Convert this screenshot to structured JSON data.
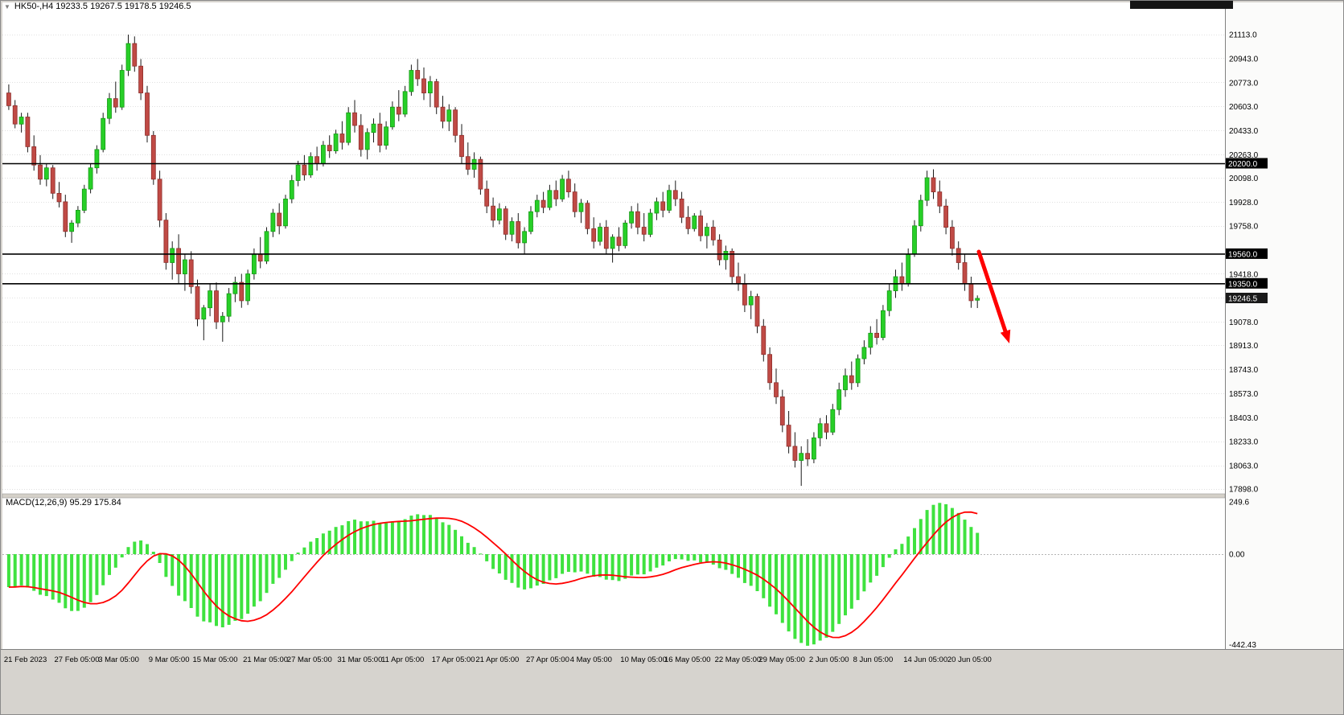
{
  "header": {
    "title": "HK50-,H4  19233.5 19267.5 19178.5 19246.5"
  },
  "colors": {
    "bull": "#27cf27",
    "bull_border": "#159915",
    "bear": "#c04a45",
    "bear_border": "#8e2f2c",
    "wick": "#1a1a1a",
    "level": "#000000",
    "grid": "#e0e0e0",
    "histogram": "#3fe23f",
    "signal": "#ff0000",
    "arrow": "#ff0000"
  },
  "price_axis": {
    "ticks": [
      21113.0,
      20943.0,
      20773.0,
      20603.0,
      20433.0,
      20263.0,
      20098.0,
      19928.0,
      19758.0,
      19418.0,
      19078.0,
      18913.0,
      18743.0,
      18573.0,
      18403.0,
      18233.0,
      18063.0,
      17898.0
    ],
    "unlabeled_gridlines": [
      19248
    ],
    "levels": [
      {
        "value": 20200,
        "label": "20200.0"
      },
      {
        "value": 19560,
        "label": "19560.0"
      },
      {
        "value": 19350,
        "label": "19350.0"
      }
    ],
    "current": {
      "value": 19246.5,
      "label": "19246.5"
    }
  },
  "time_axis": {
    "labels": [
      {
        "index": 0,
        "text": "21 Feb 2023"
      },
      {
        "index": 8,
        "text": "27 Feb 05:00"
      },
      {
        "index": 15,
        "text": "3 Mar 05:00"
      },
      {
        "index": 23,
        "text": "9 Mar 05:00"
      },
      {
        "index": 30,
        "text": "15 Mar 05:00"
      },
      {
        "index": 38,
        "text": "21 Mar 05:00"
      },
      {
        "index": 45,
        "text": "27 Mar 05:00"
      },
      {
        "index": 53,
        "text": "31 Mar 05:00"
      },
      {
        "index": 60,
        "text": "11 Apr 05:00"
      },
      {
        "index": 68,
        "text": "17 Apr 05:00"
      },
      {
        "index": 75,
        "text": "21 Apr 05:00"
      },
      {
        "index": 83,
        "text": "27 Apr 05:00"
      },
      {
        "index": 90,
        "text": "4 May 05:00"
      },
      {
        "index": 98,
        "text": "10 May 05:00"
      },
      {
        "index": 105,
        "text": "16 May 05:00"
      },
      {
        "index": 113,
        "text": "22 May 05:00"
      },
      {
        "index": 120,
        "text": "29 May 05:00"
      },
      {
        "index": 128,
        "text": "2 Jun 05:00"
      },
      {
        "index": 135,
        "text": "8 Jun 05:00"
      },
      {
        "index": 143,
        "text": "14 Jun 05:00"
      },
      {
        "index": 150,
        "text": "20 Jun 05:00"
      }
    ]
  },
  "macd_panel": {
    "label": "MACD(12,26,9) 95.29 175.84",
    "axis": [
      {
        "value": 249.6,
        "label": "249.6"
      },
      {
        "value": 0,
        "label": "0.00"
      },
      {
        "value": -442.43,
        "label": "-442.43"
      }
    ],
    "range": {
      "max": 249.6,
      "min": -442.43
    }
  },
  "chart_data": {
    "type": "candlestick",
    "symbol": "HK50-",
    "timeframe": "H4",
    "title": "HK50-,H4",
    "ohlc_display": {
      "open": 19233.5,
      "high": 19267.5,
      "low": 19178.5,
      "close": 19246.5
    },
    "ylim": [
      17898.0,
      21113.0
    ],
    "levels": [
      20200.0,
      19560.0,
      19350.0
    ],
    "indicator": {
      "name": "MACD",
      "params": [
        12,
        26,
        9
      ],
      "main_value": 95.29,
      "signal_value": 175.84
    },
    "annotation": "red-down-arrow",
    "candles": [
      [
        20700,
        20760,
        20580,
        20610
      ],
      [
        20610,
        20650,
        20450,
        20480
      ],
      [
        20480,
        20560,
        20420,
        20530
      ],
      [
        20530,
        20560,
        20280,
        20320
      ],
      [
        20320,
        20400,
        20150,
        20190
      ],
      [
        20190,
        20260,
        20050,
        20090
      ],
      [
        20090,
        20200,
        20040,
        20170
      ],
      [
        20170,
        20190,
        19950,
        19990
      ],
      [
        19990,
        20070,
        19890,
        19930
      ],
      [
        19930,
        19980,
        19680,
        19720
      ],
      [
        19720,
        19800,
        19640,
        19780
      ],
      [
        19780,
        19900,
        19750,
        19870
      ],
      [
        19870,
        20050,
        19850,
        20020
      ],
      [
        20020,
        20200,
        19990,
        20170
      ],
      [
        20170,
        20330,
        20130,
        20300
      ],
      [
        20300,
        20560,
        20280,
        20520
      ],
      [
        20520,
        20700,
        20480,
        20660
      ],
      [
        20660,
        20780,
        20560,
        20600
      ],
      [
        20600,
        20900,
        20580,
        20860
      ],
      [
        20860,
        21113,
        20820,
        21050
      ],
      [
        21050,
        21100,
        20850,
        20890
      ],
      [
        20890,
        20940,
        20650,
        20700
      ],
      [
        20700,
        20750,
        20350,
        20400
      ],
      [
        20400,
        20430,
        20050,
        20090
      ],
      [
        20090,
        20150,
        19750,
        19800
      ],
      [
        19800,
        19850,
        19450,
        19500
      ],
      [
        19500,
        19650,
        19380,
        19600
      ],
      [
        19600,
        19700,
        19350,
        19420
      ],
      [
        19420,
        19560,
        19300,
        19520
      ],
      [
        19520,
        19580,
        19280,
        19330
      ],
      [
        19330,
        19380,
        19050,
        19100
      ],
      [
        19100,
        19200,
        18950,
        19180
      ],
      [
        19180,
        19350,
        19120,
        19300
      ],
      [
        19300,
        19360,
        19030,
        19080
      ],
      [
        19080,
        19150,
        18940,
        19120
      ],
      [
        19120,
        19320,
        19080,
        19280
      ],
      [
        19280,
        19400,
        19220,
        19360
      ],
      [
        19360,
        19420,
        19180,
        19230
      ],
      [
        19230,
        19450,
        19200,
        19420
      ],
      [
        19420,
        19600,
        19380,
        19560
      ],
      [
        19560,
        19680,
        19460,
        19510
      ],
      [
        19510,
        19750,
        19490,
        19720
      ],
      [
        19720,
        19880,
        19680,
        19850
      ],
      [
        19850,
        19920,
        19700,
        19760
      ],
      [
        19760,
        19980,
        19740,
        19950
      ],
      [
        19950,
        20120,
        19920,
        20080
      ],
      [
        20080,
        20220,
        20040,
        20190
      ],
      [
        20190,
        20260,
        20080,
        20120
      ],
      [
        20120,
        20280,
        20100,
        20250
      ],
      [
        20250,
        20320,
        20150,
        20200
      ],
      [
        20200,
        20360,
        20180,
        20330
      ],
      [
        20330,
        20400,
        20240,
        20290
      ],
      [
        20290,
        20440,
        20270,
        20410
      ],
      [
        20410,
        20500,
        20300,
        20350
      ],
      [
        20350,
        20600,
        20330,
        20560
      ],
      [
        20560,
        20650,
        20420,
        20470
      ],
      [
        20470,
        20550,
        20250,
        20300
      ],
      [
        20300,
        20450,
        20230,
        20420
      ],
      [
        20420,
        20520,
        20350,
        20480
      ],
      [
        20480,
        20560,
        20280,
        20330
      ],
      [
        20330,
        20500,
        20300,
        20460
      ],
      [
        20460,
        20640,
        20440,
        20600
      ],
      [
        20600,
        20720,
        20500,
        20550
      ],
      [
        20550,
        20750,
        20530,
        20710
      ],
      [
        20710,
        20900,
        20680,
        20860
      ],
      [
        20860,
        20940,
        20750,
        20800
      ],
      [
        20800,
        20880,
        20650,
        20700
      ],
      [
        20700,
        20820,
        20600,
        20780
      ],
      [
        20780,
        20800,
        20550,
        20600
      ],
      [
        20600,
        20680,
        20450,
        20500
      ],
      [
        20500,
        20620,
        20430,
        20580
      ],
      [
        20580,
        20600,
        20350,
        20400
      ],
      [
        20400,
        20480,
        20200,
        20250
      ],
      [
        20250,
        20350,
        20120,
        20160
      ],
      [
        20160,
        20280,
        20100,
        20230
      ],
      [
        20230,
        20250,
        19980,
        20020
      ],
      [
        20020,
        20080,
        19850,
        19900
      ],
      [
        19900,
        19960,
        19750,
        19800
      ],
      [
        19800,
        19920,
        19770,
        19880
      ],
      [
        19880,
        19900,
        19660,
        19700
      ],
      [
        19700,
        19820,
        19650,
        19790
      ],
      [
        19790,
        19850,
        19600,
        19640
      ],
      [
        19640,
        19750,
        19560,
        19720
      ],
      [
        19720,
        19900,
        19700,
        19860
      ],
      [
        19860,
        19980,
        19820,
        19940
      ],
      [
        19940,
        20000,
        19850,
        19890
      ],
      [
        19890,
        20050,
        19870,
        20010
      ],
      [
        20010,
        20080,
        19900,
        19950
      ],
      [
        19950,
        20120,
        19930,
        20090
      ],
      [
        20090,
        20150,
        19960,
        20000
      ],
      [
        20000,
        20060,
        19820,
        19860
      ],
      [
        19860,
        19950,
        19780,
        19920
      ],
      [
        19920,
        19940,
        19700,
        19740
      ],
      [
        19740,
        19820,
        19600,
        19650
      ],
      [
        19650,
        19780,
        19620,
        19750
      ],
      [
        19750,
        19800,
        19560,
        19600
      ],
      [
        19600,
        19700,
        19500,
        19680
      ],
      [
        19680,
        19750,
        19580,
        19620
      ],
      [
        19620,
        19800,
        19600,
        19780
      ],
      [
        19780,
        19900,
        19740,
        19860
      ],
      [
        19860,
        19920,
        19700,
        19750
      ],
      [
        19750,
        19850,
        19650,
        19700
      ],
      [
        19700,
        19880,
        19680,
        19850
      ],
      [
        19850,
        19960,
        19800,
        19930
      ],
      [
        19930,
        20000,
        19820,
        19870
      ],
      [
        19870,
        20050,
        19850,
        20010
      ],
      [
        20010,
        20080,
        19900,
        19950
      ],
      [
        19950,
        20000,
        19780,
        19820
      ],
      [
        19820,
        19900,
        19700,
        19740
      ],
      [
        19740,
        19850,
        19720,
        19830
      ],
      [
        19830,
        19870,
        19650,
        19690
      ],
      [
        19690,
        19780,
        19600,
        19750
      ],
      [
        19750,
        19800,
        19620,
        19660
      ],
      [
        19660,
        19700,
        19480,
        19520
      ],
      [
        19520,
        19620,
        19450,
        19580
      ],
      [
        19580,
        19600,
        19350,
        19400
      ],
      [
        19400,
        19500,
        19300,
        19350
      ],
      [
        19350,
        19420,
        19150,
        19200
      ],
      [
        19200,
        19300,
        19100,
        19260
      ],
      [
        19260,
        19280,
        19000,
        19050
      ],
      [
        19050,
        19100,
        18800,
        18850
      ],
      [
        18850,
        18900,
        18600,
        18650
      ],
      [
        18650,
        18750,
        18500,
        18550
      ],
      [
        18550,
        18600,
        18300,
        18350
      ],
      [
        18350,
        18450,
        18150,
        18200
      ],
      [
        18200,
        18300,
        18050,
        18100
      ],
      [
        18100,
        18200,
        17920,
        18150
      ],
      [
        18150,
        18250,
        18060,
        18110
      ],
      [
        18110,
        18300,
        18080,
        18260
      ],
      [
        18260,
        18400,
        18200,
        18360
      ],
      [
        18360,
        18420,
        18250,
        18300
      ],
      [
        18300,
        18500,
        18280,
        18460
      ],
      [
        18460,
        18650,
        18420,
        18600
      ],
      [
        18600,
        18750,
        18550,
        18700
      ],
      [
        18700,
        18800,
        18600,
        18650
      ],
      [
        18650,
        18850,
        18620,
        18820
      ],
      [
        18820,
        18950,
        18780,
        18900
      ],
      [
        18900,
        19050,
        18850,
        19000
      ],
      [
        19000,
        19100,
        18920,
        18970
      ],
      [
        18970,
        19200,
        18950,
        19160
      ],
      [
        19160,
        19350,
        19120,
        19300
      ],
      [
        19300,
        19450,
        19250,
        19400
      ],
      [
        19400,
        19500,
        19300,
        19350
      ],
      [
        19350,
        19600,
        19330,
        19560
      ],
      [
        19560,
        19800,
        19540,
        19760
      ],
      [
        19760,
        19980,
        19720,
        19940
      ],
      [
        19940,
        20150,
        19900,
        20100
      ],
      [
        20100,
        20160,
        19950,
        20000
      ],
      [
        20000,
        20080,
        19850,
        19900
      ],
      [
        19900,
        19950,
        19700,
        19750
      ],
      [
        19750,
        19800,
        19550,
        19600
      ],
      [
        19600,
        19650,
        19450,
        19500
      ],
      [
        19500,
        19560,
        19300,
        19350
      ],
      [
        19350,
        19400,
        19180,
        19230
      ],
      [
        19233.5,
        19267.5,
        19178.5,
        19246.5
      ]
    ]
  }
}
